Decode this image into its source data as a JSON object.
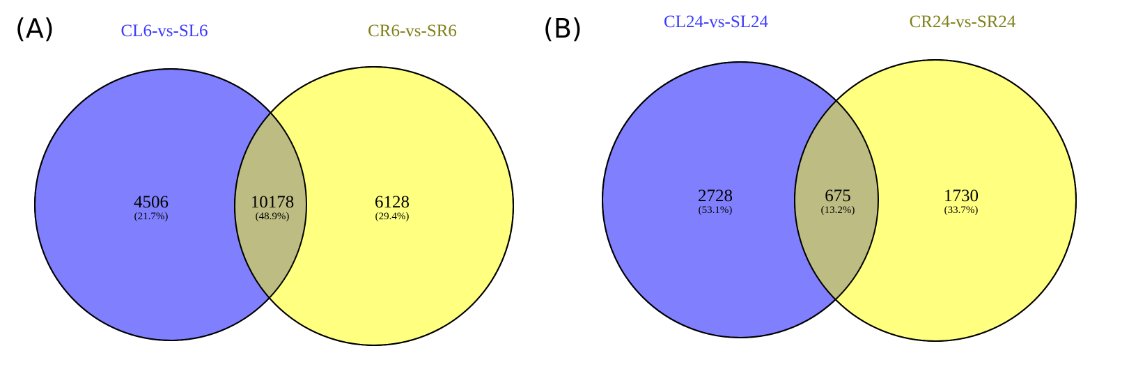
{
  "colors": {
    "set_a": "#8080ff",
    "set_b": "#ffff80",
    "overlap": "#bdbd83",
    "title_a": "#3a3aff",
    "title_b": "#80801a"
  },
  "panels": [
    {
      "label": "(A)",
      "set_a": {
        "name": "CL6-vs-SL6"
      },
      "set_b": {
        "name": "CR6-vs-SR6"
      },
      "regions": {
        "a_only": {
          "count": "4506",
          "percent": "(21.7%)"
        },
        "both": {
          "count": "10178",
          "percent": "(48.9%)"
        },
        "b_only": {
          "count": "6128",
          "percent": "(29.4%)"
        }
      }
    },
    {
      "label": "(B)",
      "set_a": {
        "name": "CL24-vs-SL24"
      },
      "set_b": {
        "name": "CR24-vs-SR24"
      },
      "regions": {
        "a_only": {
          "count": "2728",
          "percent": "(53.1%)"
        },
        "both": {
          "count": "675",
          "percent": "(13.2%)"
        },
        "b_only": {
          "count": "1730",
          "percent": "(33.7%)"
        }
      }
    }
  ]
}
